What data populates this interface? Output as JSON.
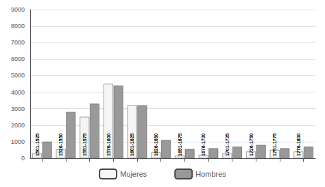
{
  "chart_data": {
    "type": "bar",
    "categories": [
      "1501-1525",
      "1526-1550",
      "1551-1575",
      "1576-1600",
      "1601-1625",
      "1626-1650",
      "1651-1675",
      "1676-1700",
      "1701-1725",
      "1726-1750",
      "1751-1775",
      "1776-1800"
    ],
    "series": [
      {
        "name": "Mujeres",
        "color": "#f5f5f5",
        "values": [
          300,
          550,
          2500,
          4500,
          3200,
          350,
          150,
          200,
          300,
          400,
          500,
          400
        ]
      },
      {
        "name": "Hombres",
        "color": "#999999",
        "values": [
          1000,
          2800,
          3300,
          4400,
          3200,
          1100,
          550,
          600,
          700,
          800,
          600,
          700
        ]
      }
    ],
    "ylim": [
      0,
      9000
    ],
    "yticks": [
      0,
      1000,
      2000,
      3000,
      4000,
      5000,
      6000,
      7000,
      8000,
      9000
    ],
    "grid": true,
    "legend": "bottom",
    "tick_labels": "y"
  }
}
